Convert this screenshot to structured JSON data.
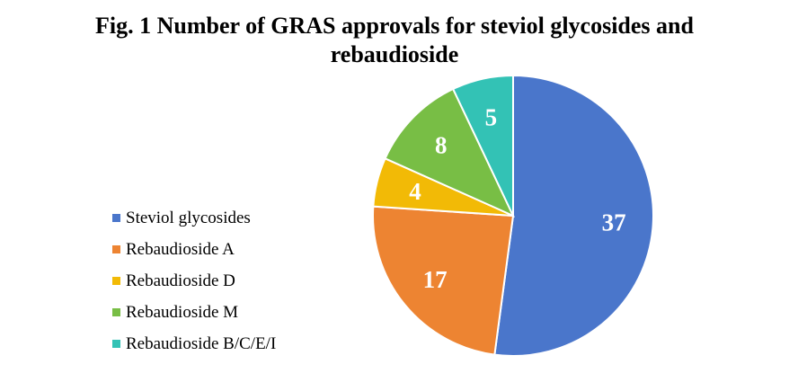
{
  "chart_data": {
    "type": "pie",
    "title": "Fig. 1 Number of GRAS approvals for steviol glycosides and rebaudioside",
    "categories": [
      "Steviol glycosides",
      "Rebaudioside A",
      "Rebaudioside D",
      "Rebaudioside M",
      "Rebaudioside B/C/E/I"
    ],
    "values": [
      37,
      17,
      4,
      8,
      5
    ],
    "colors": [
      "#4A76CB",
      "#ED8432",
      "#F2BA06",
      "#78BE45",
      "#33C2B5"
    ],
    "legend_position": "left",
    "data_labels": [
      "37",
      "17",
      "4",
      "8",
      "5"
    ]
  },
  "title_line1": "Fig. 1 Number of GRAS approvals for steviol glycosides and",
  "title_line2": "rebaudioside"
}
